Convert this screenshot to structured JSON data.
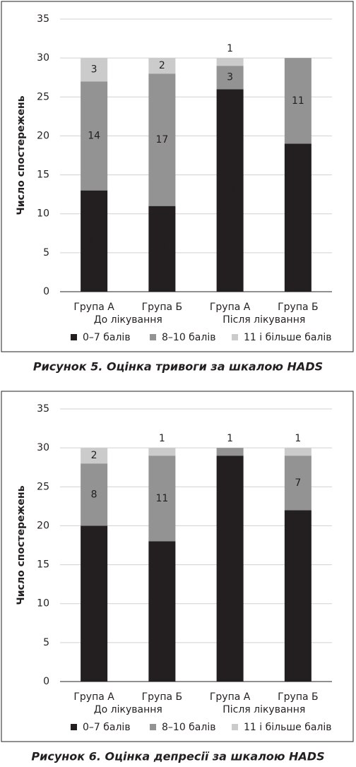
{
  "chart_data": [
    {
      "type": "stacked_bar",
      "title": "Рисунок 5. Оцінка тривоги за шкалою HADS",
      "ylabel": "Число спостережень",
      "categories": [
        "Група А",
        "Група Б",
        "Група А",
        "Група Б"
      ],
      "category_groups": [
        "До лікування",
        "Після лікування"
      ],
      "series": [
        {
          "name": "0–7 балів",
          "color": "#231f20",
          "values": [
            13,
            11,
            26,
            19
          ]
        },
        {
          "name": "8–10 балів",
          "color": "#939393",
          "values": [
            14,
            17,
            3,
            11
          ]
        },
        {
          "name": "11 і більше балів",
          "color": "#cbcbcb",
          "values": [
            3,
            2,
            1,
            0
          ]
        }
      ],
      "ylim": [
        0,
        35
      ],
      "yticks": [
        0,
        5,
        10,
        15,
        20,
        25,
        30,
        35
      ],
      "grid": true
    },
    {
      "type": "stacked_bar",
      "title": "Рисунок 6. Оцінка депресії за шкалою HADS",
      "ylabel": "Число спостережень",
      "categories": [
        "Група А",
        "Група Б",
        "Група А",
        "Група Б"
      ],
      "category_groups": [
        "До лікування",
        "Після лікування"
      ],
      "series": [
        {
          "name": "0–7 балів",
          "color": "#231f20",
          "values": [
            20,
            18,
            29,
            22
          ]
        },
        {
          "name": "8–10 балів",
          "color": "#939393",
          "values": [
            8,
            11,
            1,
            7
          ]
        },
        {
          "name": "11 і більше балів",
          "color": "#cbcbcb",
          "values": [
            2,
            1,
            0,
            1
          ]
        }
      ],
      "ylim": [
        0,
        35
      ],
      "yticks": [
        0,
        5,
        10,
        15,
        20,
        25,
        30,
        35
      ],
      "grid": true
    }
  ]
}
